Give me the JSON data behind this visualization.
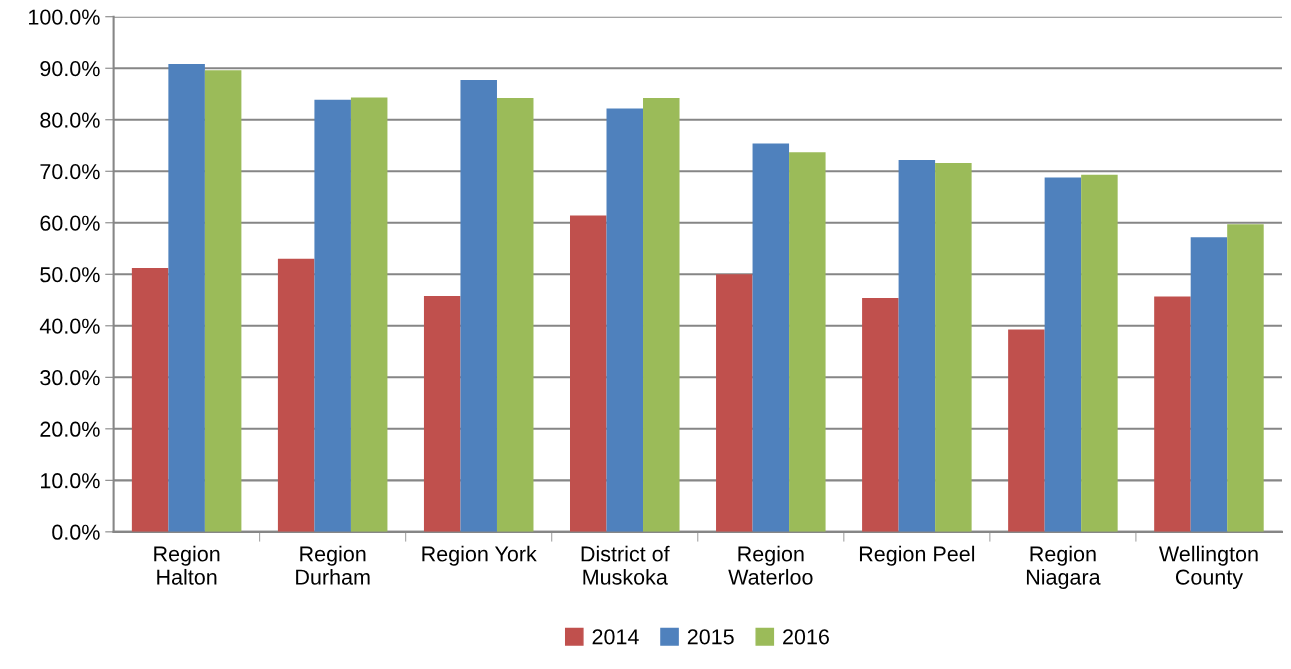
{
  "chart_data": {
    "type": "bar",
    "categories": [
      "Region\nHalton",
      "Region\nDurham",
      "Region York",
      "District of\nMuskoka",
      "Region\nWaterloo",
      "Region Peel",
      "Region\nNiagara",
      "Wellington\nCounty"
    ],
    "series": [
      {
        "name": "2014",
        "color": "#c0504d",
        "values": [
          51.2,
          53.0,
          45.8,
          61.4,
          50.0,
          45.4,
          39.3,
          45.7
        ]
      },
      {
        "name": "2015",
        "color": "#4f81bd",
        "values": [
          90.8,
          83.9,
          87.7,
          82.2,
          75.4,
          72.2,
          68.8,
          57.2
        ]
      },
      {
        "name": "2016",
        "color": "#9bbb59",
        "values": [
          89.6,
          84.3,
          84.2,
          84.2,
          73.7,
          71.6,
          69.3,
          59.7
        ]
      }
    ],
    "ylim": [
      0,
      100
    ],
    "yticks": [
      {
        "value": 0,
        "label": "0.0%"
      },
      {
        "value": 10,
        "label": "10.0%"
      },
      {
        "value": 20,
        "label": "20.0%"
      },
      {
        "value": 30,
        "label": "30.0%"
      },
      {
        "value": 40,
        "label": "40.0%"
      },
      {
        "value": 50,
        "label": "50.0%"
      },
      {
        "value": 60,
        "label": "60.0%"
      },
      {
        "value": 70,
        "label": "70.0%"
      },
      {
        "value": 80,
        "label": "80.0%"
      },
      {
        "value": 90,
        "label": "90.0%"
      },
      {
        "value": 100,
        "label": "100.0%"
      }
    ],
    "grid": "y",
    "legend": "bottom"
  }
}
